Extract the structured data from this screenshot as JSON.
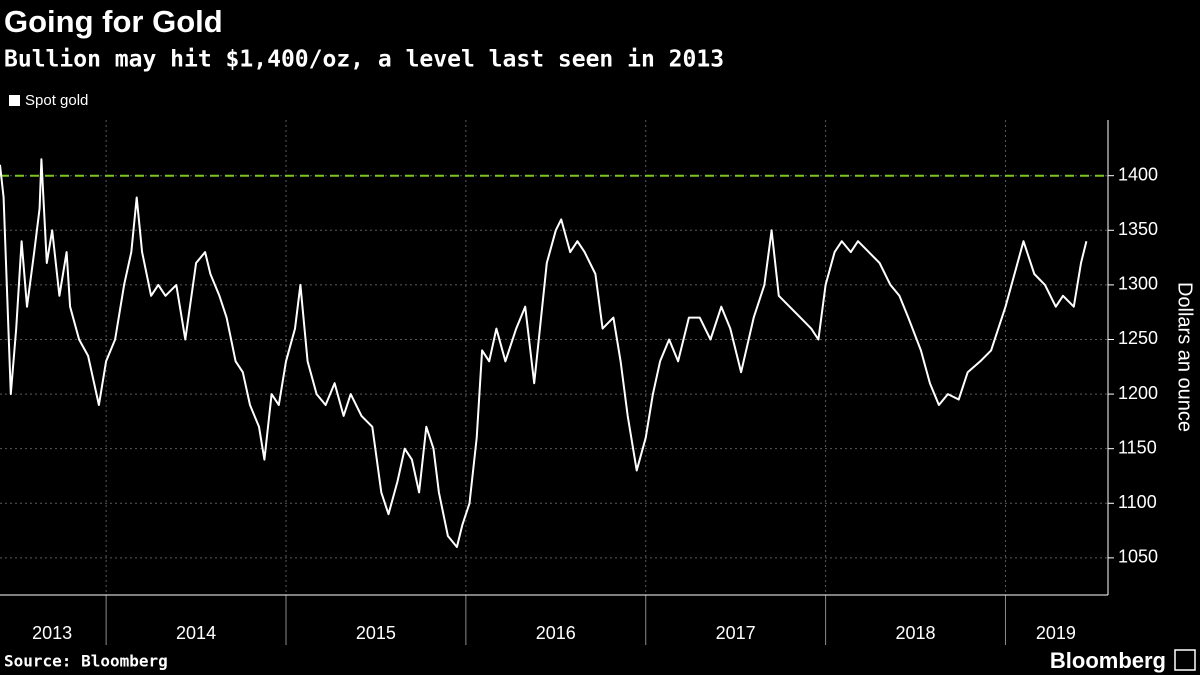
{
  "chart_data": {
    "type": "line",
    "title": "Going for Gold",
    "subtitle": "Bullion may hit $1,400/oz, a level last seen in 2013",
    "y_label": "Dollars an ounce",
    "source": "Source: Bloomberg",
    "brand": "Bloomberg",
    "xlim": [
      2013.41,
      2019.57
    ],
    "ylim": [
      1016,
      1451
    ],
    "yticks": [
      1050,
      1100,
      1150,
      1200,
      1250,
      1300,
      1350,
      1400
    ],
    "xticks": [
      {
        "value": 2013.7,
        "label": "2013"
      },
      {
        "value": 2014.5,
        "label": "2014"
      },
      {
        "value": 2015.5,
        "label": "2015"
      },
      {
        "value": 2016.5,
        "label": "2016"
      },
      {
        "value": 2017.5,
        "label": "2017"
      },
      {
        "value": 2018.5,
        "label": "2018"
      },
      {
        "value": 2019.28,
        "label": "2019"
      }
    ],
    "xgrid": [
      2014,
      2015,
      2016,
      2017,
      2018,
      2019
    ],
    "grid": true,
    "reference_line": 1400,
    "reference_color": "#7cc520",
    "x": [
      2013.41,
      2013.43,
      2013.45,
      2013.47,
      2013.5,
      2013.53,
      2013.56,
      2013.6,
      2013.63,
      2013.64,
      2013.67,
      2013.7,
      2013.74,
      2013.78,
      2013.8,
      2013.85,
      2013.9,
      2013.96,
      2014.0,
      2014.05,
      2014.1,
      2014.14,
      2014.17,
      2014.2,
      2014.25,
      2014.29,
      2014.33,
      2014.39,
      2014.44,
      2014.5,
      2014.55,
      2014.58,
      2014.63,
      2014.67,
      2014.72,
      2014.76,
      2014.8,
      2014.85,
      2014.88,
      2014.92,
      2014.96,
      2015.0,
      2015.05,
      2015.08,
      2015.12,
      2015.17,
      2015.22,
      2015.27,
      2015.32,
      2015.36,
      2015.42,
      2015.48,
      2015.53,
      2015.57,
      2015.62,
      2015.66,
      2015.7,
      2015.74,
      2015.78,
      2015.82,
      2015.85,
      2015.9,
      2015.95,
      2015.98,
      2016.02,
      2016.06,
      2016.09,
      2016.13,
      2016.17,
      2016.22,
      2016.28,
      2016.33,
      2016.38,
      2016.45,
      2016.5,
      2016.53,
      2016.58,
      2016.62,
      2016.66,
      2016.72,
      2016.76,
      2016.82,
      2016.86,
      2016.9,
      2016.95,
      2017.0,
      2017.04,
      2017.08,
      2017.13,
      2017.18,
      2017.24,
      2017.3,
      2017.36,
      2017.42,
      2017.47,
      2017.53,
      2017.6,
      2017.66,
      2017.7,
      2017.74,
      2017.8,
      2017.86,
      2017.92,
      2017.96,
      2018.0,
      2018.05,
      2018.09,
      2018.14,
      2018.18,
      2018.24,
      2018.3,
      2018.36,
      2018.41,
      2018.46,
      2018.53,
      2018.58,
      2018.63,
      2018.68,
      2018.74,
      2018.79,
      2018.86,
      2018.92,
      2019.0,
      2019.05,
      2019.1,
      2019.16,
      2019.22,
      2019.28,
      2019.32,
      2019.38,
      2019.42,
      2019.45
    ],
    "series": [
      {
        "name": "Spot gold",
        "color": "#ffffff",
        "values": [
          1410,
          1380,
          1290,
          1200,
          1260,
          1340,
          1280,
          1330,
          1370,
          1415,
          1320,
          1350,
          1290,
          1330,
          1280,
          1250,
          1235,
          1190,
          1230,
          1250,
          1300,
          1330,
          1380,
          1330,
          1290,
          1300,
          1290,
          1300,
          1250,
          1320,
          1330,
          1310,
          1290,
          1270,
          1230,
          1220,
          1190,
          1170,
          1140,
          1200,
          1190,
          1230,
          1260,
          1300,
          1230,
          1200,
          1190,
          1210,
          1180,
          1200,
          1180,
          1170,
          1110,
          1090,
          1120,
          1150,
          1140,
          1110,
          1170,
          1150,
          1110,
          1070,
          1060,
          1080,
          1100,
          1160,
          1240,
          1230,
          1260,
          1230,
          1260,
          1280,
          1210,
          1320,
          1350,
          1360,
          1330,
          1340,
          1330,
          1310,
          1260,
          1270,
          1230,
          1180,
          1130,
          1160,
          1200,
          1230,
          1250,
          1230,
          1270,
          1270,
          1250,
          1280,
          1260,
          1220,
          1270,
          1300,
          1350,
          1290,
          1280,
          1270,
          1260,
          1250,
          1300,
          1330,
          1340,
          1330,
          1340,
          1330,
          1320,
          1300,
          1290,
          1270,
          1240,
          1210,
          1190,
          1200,
          1195,
          1220,
          1230,
          1240,
          1280,
          1310,
          1340,
          1310,
          1300,
          1280,
          1290,
          1280,
          1320,
          1340
        ]
      }
    ]
  }
}
